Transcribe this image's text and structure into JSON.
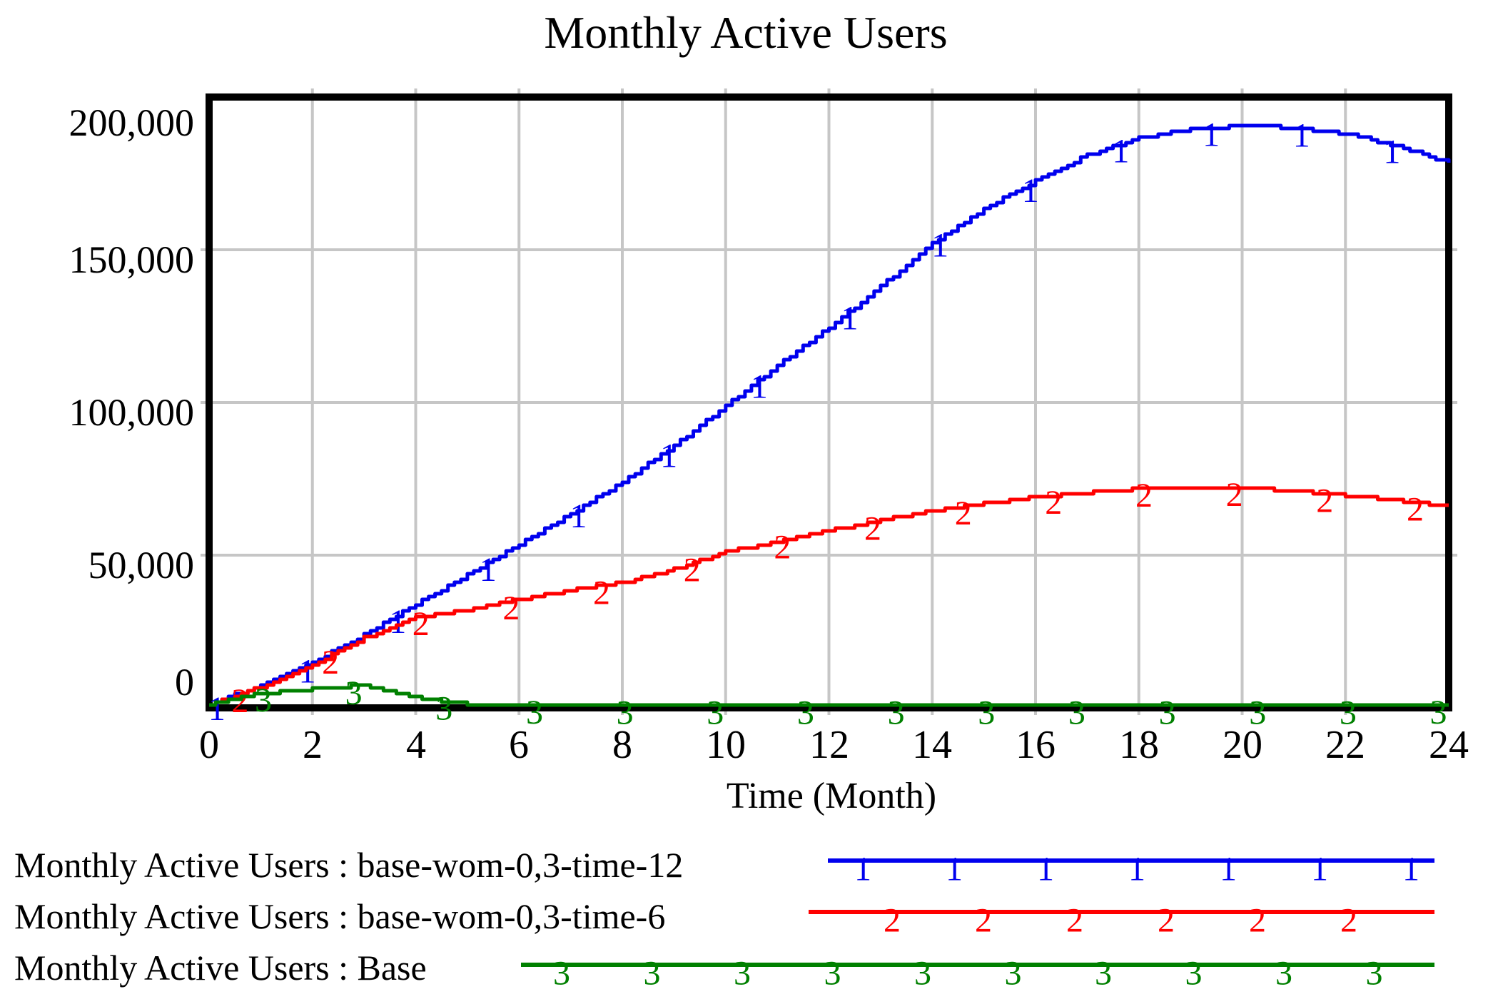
{
  "chart_data": {
    "type": "line",
    "title": "Monthly Active Users",
    "xlabel": "Time (Month)",
    "ylabel": "",
    "xlim": [
      0,
      24
    ],
    "ylim": [
      0,
      200000
    ],
    "grid": true,
    "legend_position": "bottom-left",
    "x_ticks": [
      "0",
      "2",
      "4",
      "6",
      "8",
      "10",
      "12",
      "14",
      "16",
      "18",
      "20",
      "22",
      "24"
    ],
    "y_ticks": [
      "200,000",
      "150,000",
      "100,000",
      "50,000",
      "0"
    ],
    "x": [
      0,
      1,
      2,
      3,
      4,
      5,
      6,
      7,
      8,
      9,
      10,
      11,
      12,
      13,
      14,
      15,
      16,
      17,
      18,
      19,
      20,
      21,
      22,
      23,
      24
    ],
    "series": [
      {
        "name": "Monthly Active Users : base-wom-0,3-time-12",
        "run": "base-wom-0,3-time-12",
        "marker": "1",
        "color": "#0000ee",
        "values": [
          1000,
          7500,
          15000,
          24000,
          34000,
          43500,
          53500,
          63500,
          74000,
          86000,
          99000,
          112000,
          124500,
          138000,
          152000,
          163500,
          172500,
          181000,
          186500,
          189500,
          190500,
          190000,
          188000,
          184000,
          178500
        ]
      },
      {
        "name": "Monthly Active Users : base-wom-0,3-time-6",
        "run": "base-wom-0,3-time-6",
        "marker": "2",
        "color": "#ff0000",
        "values": [
          1000,
          7000,
          14000,
          23000,
          29500,
          32000,
          35500,
          38500,
          41000,
          45500,
          51000,
          54500,
          58000,
          61500,
          64500,
          67000,
          69000,
          70500,
          71800,
          72300,
          72000,
          71000,
          69500,
          68000,
          66000
        ]
      },
      {
        "name": "Monthly Active Users : Base",
        "run": "Base",
        "marker": "3",
        "color": "#008000",
        "values": [
          1000,
          4700,
          6100,
          7400,
          3300,
          1200,
          800,
          700,
          700,
          700,
          700,
          700,
          700,
          700,
          700,
          700,
          700,
          700,
          700,
          700,
          700,
          700,
          700,
          700,
          800
        ]
      }
    ]
  },
  "colors": {
    "gridline": "#c6c6c6",
    "border": "#000000",
    "text": "#000000",
    "background": "#ffffff"
  }
}
